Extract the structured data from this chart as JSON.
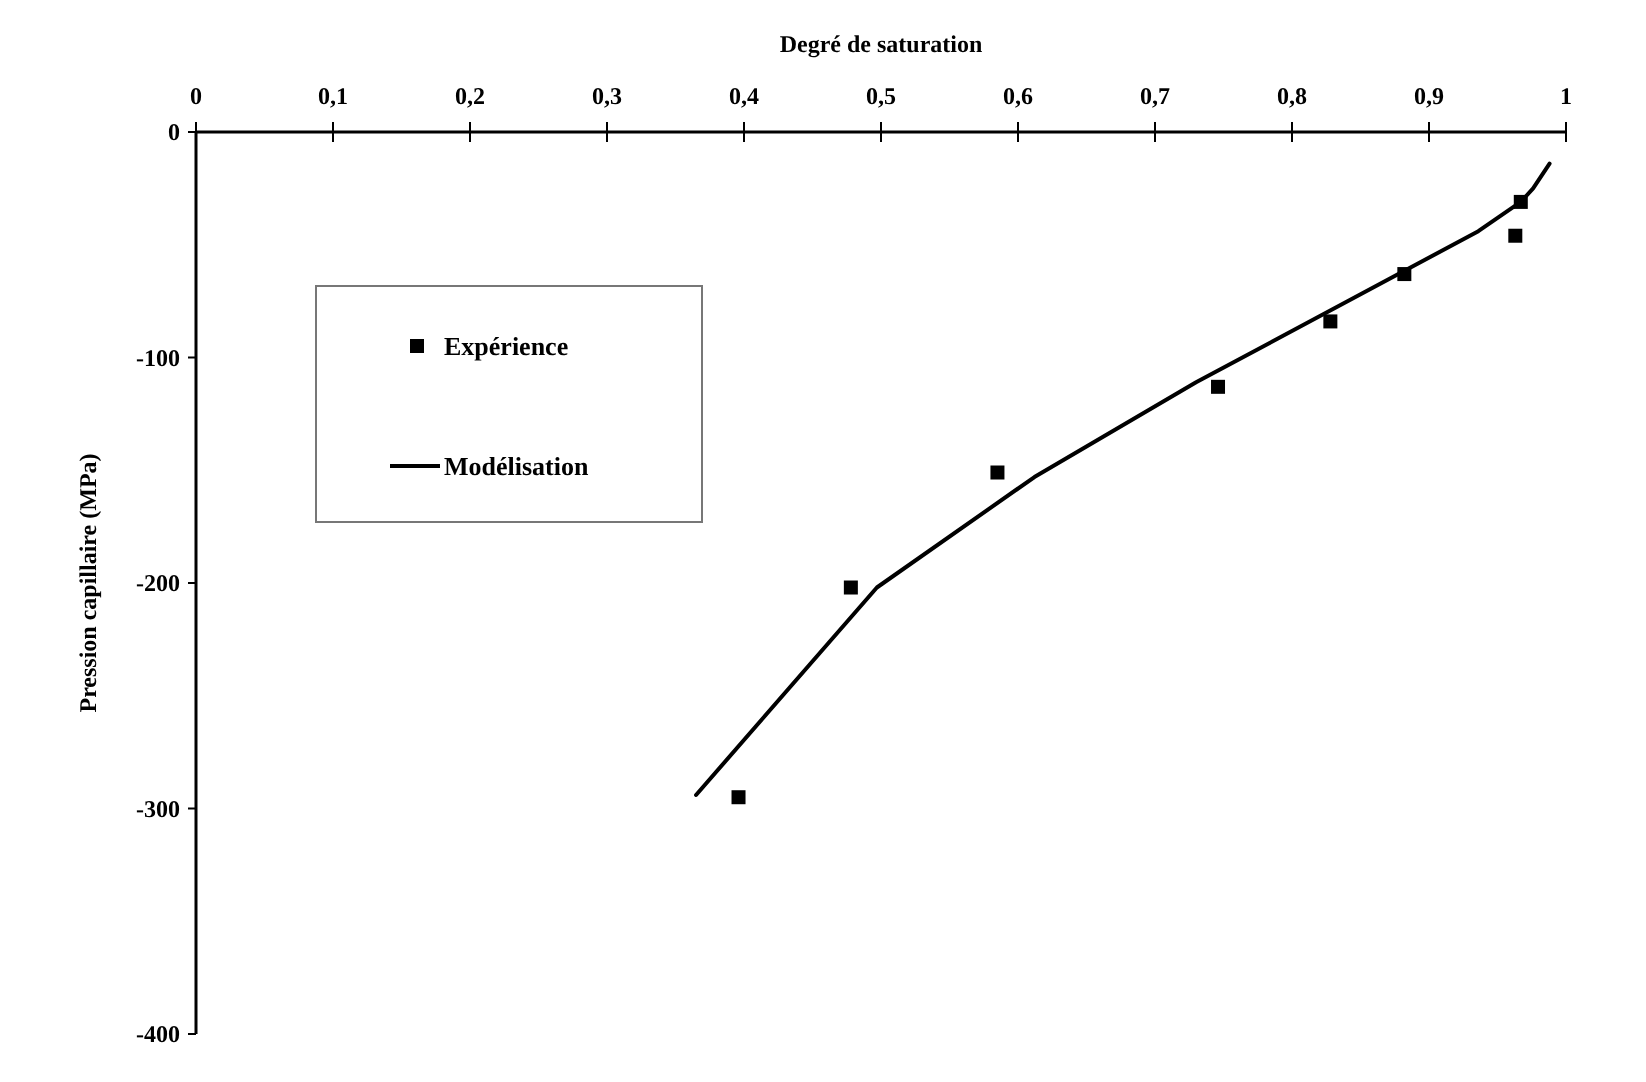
{
  "chart_data": {
    "type": "line",
    "xlabel": "Degré de saturation",
    "ylabel": "Pression capillaire (MPa)",
    "xlim": [
      0,
      1
    ],
    "ylim": [
      -400,
      0
    ],
    "xticks": [
      0,
      {
        "value": 0.1,
        "label": "0,1"
      },
      {
        "value": 0.2,
        "label": "0,2"
      },
      {
        "value": 0.3,
        "label": "0,3"
      },
      {
        "value": 0.4,
        "label": "0,4"
      },
      {
        "value": 0.5,
        "label": "0,5"
      },
      {
        "value": 0.6,
        "label": "0,6"
      },
      {
        "value": 0.7,
        "label": "0,7"
      },
      {
        "value": 0.8,
        "label": "0,8"
      },
      {
        "value": 0.9,
        "label": "0,9"
      },
      1
    ],
    "yticks": [
      -400,
      -300,
      -200,
      -100,
      0
    ],
    "grid": false,
    "legend": "top left",
    "series": [
      {
        "name": "Expérience",
        "type": "scatter",
        "marker": "square",
        "color": "#000000",
        "x": [
          0.396,
          0.478,
          0.585,
          0.746,
          0.828,
          0.882,
          0.963,
          0.967
        ],
        "values": [
          -295,
          -202,
          -151,
          -113,
          -84,
          -63,
          -46,
          -31
        ]
      },
      {
        "name": "Modélisation",
        "marker": "none",
        "line_style": "solid",
        "color": "#000000",
        "x": [
          0.365,
          0.497,
          0.612,
          0.73,
          0.936,
          0.967,
          0.976,
          0.988
        ],
        "values": [
          -294,
          -202,
          -153,
          -111,
          -44,
          -31,
          -25,
          -14
        ]
      }
    ]
  }
}
